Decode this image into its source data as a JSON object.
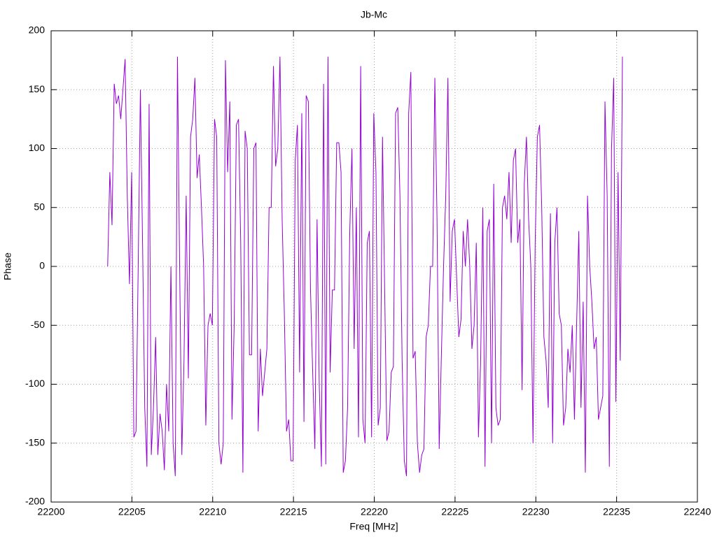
{
  "chart_data": {
    "type": "line",
    "title": "Jb-Mc",
    "xlabel": "Freq [MHz]",
    "ylabel": "Phase",
    "color": "#9400d3",
    "grid": true,
    "xlim": [
      22200,
      22240
    ],
    "xticks": [
      22200,
      22205,
      22210,
      22215,
      22220,
      22225,
      22230,
      22235,
      22240
    ],
    "ylim": [
      -200,
      200
    ],
    "yticks": [
      -200,
      -150,
      -100,
      -50,
      0,
      50,
      100,
      150,
      200
    ],
    "x": [
      22203.5,
      22203.635,
      22203.77,
      22203.905,
      22204.04,
      22204.175,
      22204.31,
      22204.445,
      22204.58,
      22204.715,
      22204.85,
      22204.985,
      22205.12,
      22205.255,
      22205.39,
      22205.525,
      22205.66,
      22205.795,
      22205.93,
      22206.065,
      22206.2,
      22206.335,
      22206.47,
      22206.605,
      22206.74,
      22206.875,
      22207.01,
      22207.145,
      22207.28,
      22207.415,
      22207.55,
      22207.685,
      22207.82,
      22207.955,
      22208.09,
      22208.225,
      22208.36,
      22208.495,
      22208.63,
      22208.765,
      22208.9,
      22209.035,
      22209.17,
      22209.305,
      22209.44,
      22209.575,
      22209.71,
      22209.845,
      22209.98,
      22210.115,
      22210.25,
      22210.385,
      22210.52,
      22210.655,
      22210.79,
      22210.925,
      22211.06,
      22211.195,
      22211.33,
      22211.465,
      22211.6,
      22211.735,
      22211.87,
      22212.005,
      22212.14,
      22212.275,
      22212.41,
      22212.545,
      22212.68,
      22212.815,
      22212.95,
      22213.085,
      22213.22,
      22213.355,
      22213.49,
      22213.625,
      22213.76,
      22213.895,
      22214.03,
      22214.165,
      22214.3,
      22214.435,
      22214.57,
      22214.705,
      22214.84,
      22214.975,
      22215.11,
      22215.245,
      22215.38,
      22215.515,
      22215.65,
      22215.785,
      22215.92,
      22216.055,
      22216.19,
      22216.325,
      22216.46,
      22216.595,
      22216.73,
      22216.865,
      22217.0,
      22217.135,
      22217.27,
      22217.405,
      22217.54,
      22217.675,
      22217.81,
      22217.945,
      22218.08,
      22218.215,
      22218.35,
      22218.485,
      22218.62,
      22218.755,
      22218.89,
      22219.025,
      22219.16,
      22219.295,
      22219.43,
      22219.565,
      22219.7,
      22219.835,
      22219.97,
      22220.105,
      22220.24,
      22220.375,
      22220.51,
      22220.645,
      22220.78,
      22220.915,
      22221.05,
      22221.185,
      22221.32,
      22221.455,
      22221.59,
      22221.725,
      22221.86,
      22221.995,
      22222.13,
      22222.265,
      22222.4,
      22222.535,
      22222.67,
      22222.805,
      22222.94,
      22223.075,
      22223.21,
      22223.345,
      22223.48,
      22223.615,
      22223.75,
      22223.885,
      22224.02,
      22224.155,
      22224.29,
      22224.425,
      22224.56,
      22224.695,
      22224.83,
      22224.965,
      22225.1,
      22225.235,
      22225.37,
      22225.505,
      22225.64,
      22225.775,
      22225.91,
      22226.045,
      22226.18,
      22226.315,
      22226.45,
      22226.585,
      22226.72,
      22226.855,
      22226.99,
      22227.125,
      22227.26,
      22227.395,
      22227.53,
      22227.665,
      22227.8,
      22227.935,
      22228.07,
      22228.205,
      22228.34,
      22228.475,
      22228.61,
      22228.745,
      22228.88,
      22229.015,
      22229.15,
      22229.285,
      22229.42,
      22229.555,
      22229.69,
      22229.825,
      22229.96,
      22230.095,
      22230.23,
      22230.365,
      22230.5,
      22230.635,
      22230.77,
      22230.905,
      22231.04,
      22231.175,
      22231.31,
      22231.445,
      22231.58,
      22231.715,
      22231.85,
      22231.985,
      22232.12,
      22232.255,
      22232.39,
      22232.525,
      22232.66,
      22232.795,
      22232.93,
      22233.065,
      22233.2,
      22233.335,
      22233.47,
      22233.605,
      22233.74,
      22233.875,
      22234.01,
      22234.145,
      22234.28,
      22234.415,
      22234.55,
      22234.685,
      22234.82,
      22234.955,
      22235.09,
      22235.225,
      22235.36
    ],
    "values": [
      0,
      80,
      35,
      155,
      138,
      145,
      125,
      150,
      176,
      60,
      -15,
      80,
      -145,
      -140,
      0,
      150,
      20,
      -120,
      -170,
      138,
      -160,
      -120,
      -60,
      -160,
      -125,
      -140,
      -173,
      -100,
      -140,
      0,
      -150,
      -178,
      178,
      0,
      -160,
      -80,
      60,
      -95,
      110,
      125,
      160,
      75,
      95,
      50,
      0,
      -135,
      -50,
      -40,
      -50,
      125,
      110,
      -150,
      -168,
      -150,
      175,
      80,
      140,
      -130,
      -50,
      120,
      125,
      20,
      -175,
      115,
      100,
      -75,
      -75,
      100,
      105,
      -140,
      -70,
      -110,
      -90,
      -70,
      50,
      50,
      170,
      85,
      100,
      178,
      40,
      -40,
      -140,
      -130,
      -165,
      -165,
      90,
      120,
      -90,
      130,
      -132,
      145,
      140,
      -20,
      -90,
      -155,
      40,
      -100,
      -170,
      155,
      -168,
      178,
      -90,
      -20,
      -20,
      105,
      105,
      80,
      -175,
      -165,
      -120,
      30,
      100,
      -70,
      50,
      -145,
      170,
      -130,
      -150,
      20,
      30,
      -145,
      130,
      80,
      -135,
      -120,
      110,
      -20,
      -148,
      -140,
      -90,
      -85,
      130,
      135,
      60,
      -80,
      -165,
      -178,
      130,
      165,
      -78,
      -72,
      -150,
      -175,
      -160,
      -155,
      -60,
      -50,
      0,
      0,
      160,
      40,
      -155,
      -75,
      0,
      60,
      160,
      -30,
      30,
      40,
      -10,
      -60,
      -45,
      30,
      0,
      40,
      0,
      -70,
      -50,
      20,
      -145,
      -80,
      50,
      -170,
      30,
      40,
      -150,
      70,
      -120,
      -135,
      -130,
      50,
      60,
      40,
      80,
      20,
      90,
      100,
      20,
      40,
      -105,
      70,
      110,
      40,
      0,
      -150,
      20,
      110,
      120,
      50,
      -60,
      -80,
      -120,
      45,
      -150,
      20,
      50,
      -40,
      -50,
      -135,
      -120,
      -70,
      -90,
      -50,
      -130,
      -50,
      30,
      -120,
      -30,
      -175,
      60,
      0,
      -30,
      -70,
      -60,
      -130,
      -120,
      -110,
      140,
      60,
      -170,
      100,
      160,
      -115,
      80,
      -80,
      178
    ]
  }
}
